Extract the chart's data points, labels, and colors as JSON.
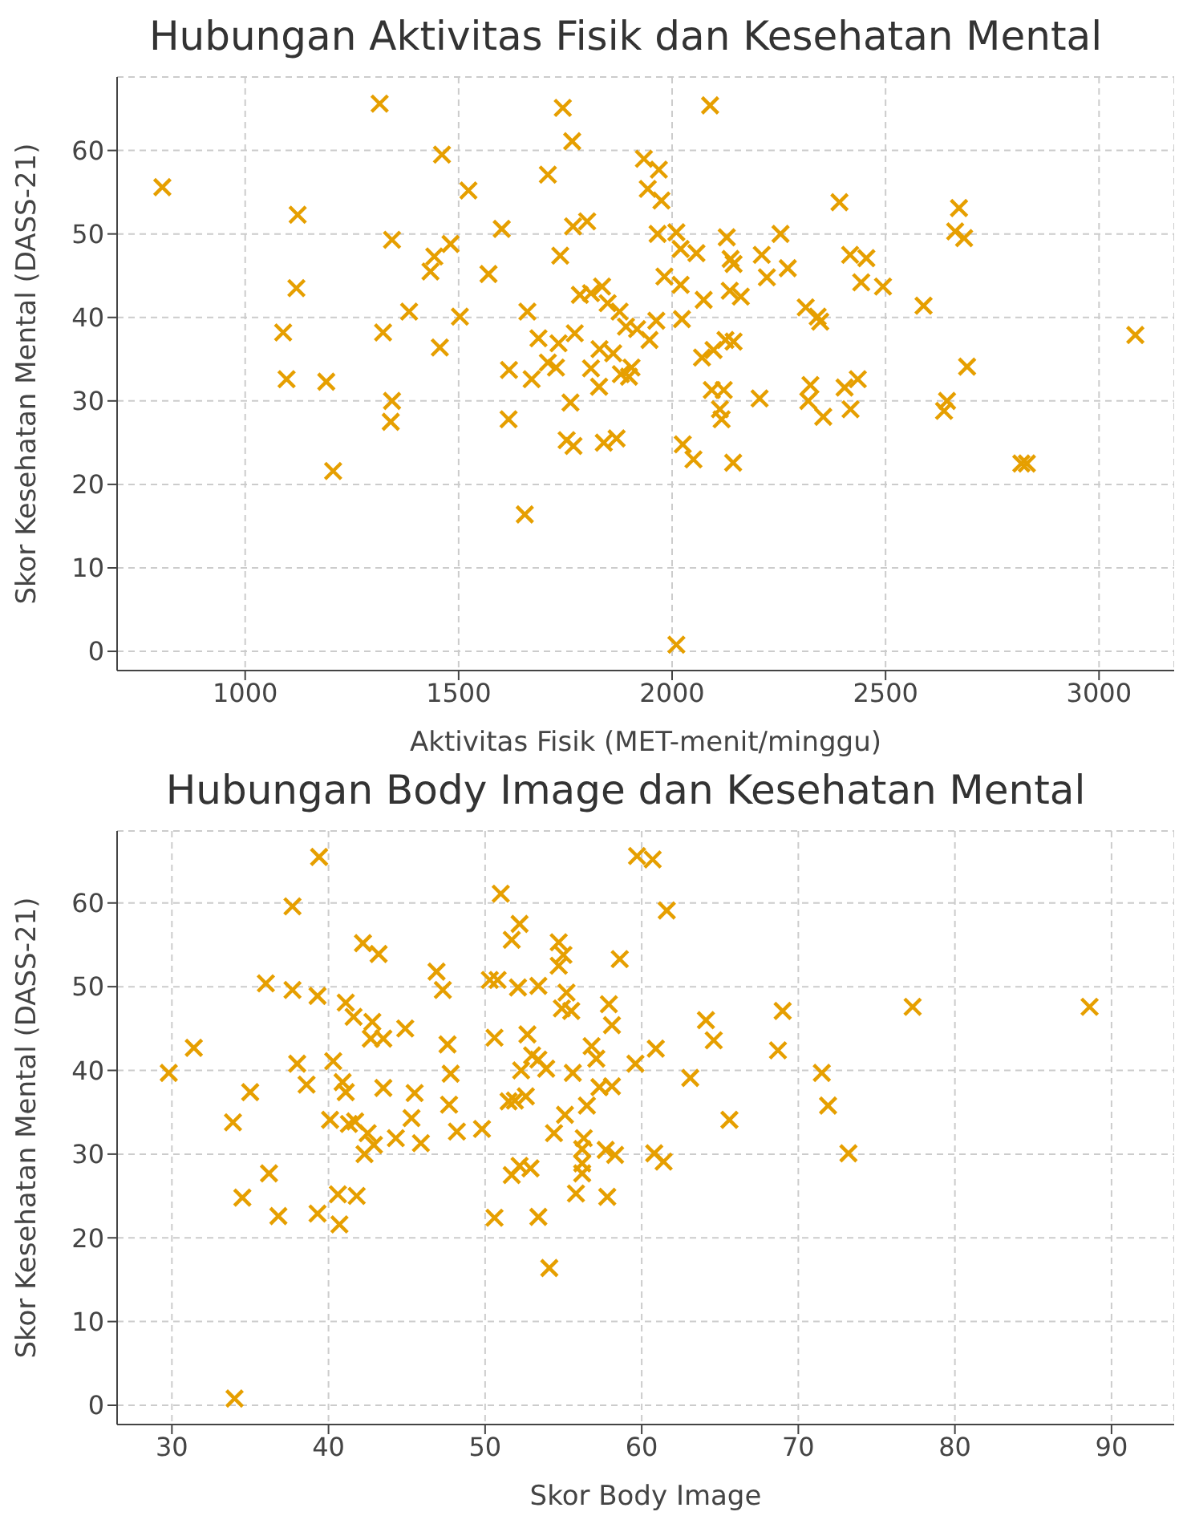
{
  "chart_data": [
    {
      "type": "scatter",
      "title": "Hubungan Aktivitas Fisik dan Kesehatan Mental",
      "xlabel": "Aktivitas Fisik (MET-menit/minggu)",
      "ylabel": "Skor Kesehatan Mental (DASS-21)",
      "color": "#e69f00",
      "marker": "cross",
      "grid": true,
      "x": [
        806,
        1315,
        1744,
        1766,
        1461,
        1709,
        1523,
        1123,
        1601,
        1768,
        1801,
        1344,
        1481,
        1443,
        1434,
        1738,
        1570,
        1120,
        1784,
        1810,
        1836,
        1849,
        1877,
        1892,
        1918,
        1384,
        1503,
        1661,
        1089,
        1323,
        1456,
        1687,
        1734,
        1772,
        1830,
        1862,
        1810,
        1709,
        1728,
        1618,
        1671,
        1829,
        1880,
        1905,
        1899,
        1097,
        1190,
        1344,
        1341,
        1617,
        1762,
        1753,
        1769,
        1840,
        1870,
        1206,
        1655,
        2089,
        1934,
        1969,
        1943,
        1975,
        1966,
        2010,
        2020,
        2057,
        2128,
        2137,
        2144,
        2135,
        2161,
        2074,
        2020,
        1982,
        2210,
        2254,
        2222,
        2271,
        2392,
        2417,
        2455,
        2443,
        2494,
        2589,
        2672,
        2663,
        2684,
        2691,
        2644,
        2637,
        2818,
        2831,
        3085,
        2313,
        2341,
        2347,
        1963,
        2023,
        1947,
        2070,
        2097,
        2125,
        2144,
        2093,
        2121,
        2112,
        2116,
        2205,
        2324,
        2319,
        2354,
        2404,
        2435,
        2418,
        2025,
        2050,
        2143,
        2010
      ],
      "values": [
        55.6,
        65.6,
        65.1,
        61.1,
        59.5,
        57.1,
        55.2,
        52.3,
        50.6,
        50.9,
        51.5,
        49.3,
        48.8,
        47.3,
        45.5,
        47.4,
        45.2,
        43.5,
        42.7,
        42.9,
        43.7,
        41.7,
        40.7,
        38.9,
        38.6,
        40.7,
        40.1,
        40.7,
        38.2,
        38.2,
        36.4,
        37.5,
        36.9,
        38.1,
        36.2,
        35.7,
        33.9,
        34.6,
        34.0,
        33.7,
        32.6,
        31.7,
        33.2,
        34.0,
        32.9,
        32.6,
        32.3,
        30.0,
        27.5,
        27.8,
        29.8,
        25.3,
        24.6,
        25.0,
        25.5,
        21.6,
        16.4,
        65.4,
        59.0,
        57.7,
        55.4,
        54.0,
        50.0,
        50.2,
        48.2,
        47.7,
        49.6,
        47.0,
        46.4,
        43.2,
        42.5,
        42.1,
        43.9,
        44.9,
        47.5,
        50.0,
        44.8,
        45.9,
        53.8,
        47.5,
        47.1,
        44.2,
        43.7,
        41.4,
        53.1,
        50.3,
        49.5,
        34.1,
        30.0,
        28.8,
        22.5,
        22.5,
        37.9,
        41.2,
        40.1,
        39.5,
        39.6,
        39.8,
        37.3,
        35.2,
        36.1,
        37.3,
        37.1,
        31.3,
        31.3,
        29.0,
        27.8,
        30.3,
        31.9,
        30.0,
        28.1,
        31.6,
        32.6,
        29.0,
        24.8,
        23.0,
        22.6,
        0.8
      ],
      "xlim": [
        700,
        3176
      ],
      "ylim": [
        -2.3,
        68.8
      ],
      "xticks": [
        1000,
        1500,
        2000,
        2500,
        3000
      ],
      "yticks": [
        0,
        10,
        20,
        30,
        40,
        50,
        60
      ]
    },
    {
      "type": "scatter",
      "title": "Hubungan Body Image dan Kesehatan Mental",
      "xlabel": "Skor Body Image",
      "ylabel": "Skor Kesehatan Mental (DASS-21)",
      "color": "#e69f00",
      "marker": "cross",
      "grid": true,
      "x": [
        39.4,
        37.7,
        51.0,
        52.2,
        51.7,
        54.7,
        55.0,
        43.2,
        42.2,
        36.0,
        37.7,
        39.3,
        46.9,
        47.3,
        50.3,
        50.8,
        52.1,
        53.4,
        54.7,
        55.2,
        54.9,
        55.5,
        57.9,
        58.1,
        41.1,
        41.6,
        42.8,
        42.7,
        43.5,
        44.9,
        47.6,
        50.6,
        52.7,
        53.0,
        53.4,
        53.9,
        52.3,
        55.6,
        56.8,
        57.1,
        31.4,
        29.8,
        35.0,
        38.0,
        38.6,
        40.3,
        40.9,
        41.1,
        43.5,
        45.5,
        47.8,
        47.7,
        51.5,
        51.9,
        52.6,
        55.1,
        56.5,
        57.3,
        58.1,
        33.9,
        40.1,
        41.3,
        41.7,
        42.5,
        42.9,
        42.3,
        45.3,
        44.3,
        45.9,
        48.2,
        49.8,
        54.4,
        56.3,
        56.2,
        56.2,
        56.2,
        57.7,
        58.3,
        36.2,
        34.5,
        36.8,
        39.3,
        40.6,
        41.8,
        40.7,
        51.7,
        52.2,
        52.9,
        55.8,
        57.8,
        50.6,
        53.4,
        54.1,
        34.0,
        59.7,
        60.7,
        61.6,
        58.6,
        69.0,
        77.3,
        88.6,
        64.1,
        64.6,
        60.9,
        68.7,
        59.6,
        71.5,
        71.9,
        63.1,
        65.6,
        73.2,
        60.8,
        61.4
      ],
      "values": [
        65.5,
        59.6,
        61.1,
        57.5,
        55.6,
        55.3,
        53.8,
        53.9,
        55.2,
        50.4,
        49.6,
        48.9,
        51.8,
        49.6,
        50.8,
        50.8,
        49.9,
        50.1,
        52.5,
        49.3,
        47.4,
        47.1,
        47.9,
        45.4,
        48.1,
        46.4,
        45.8,
        43.8,
        43.8,
        45.0,
        43.1,
        43.9,
        44.3,
        41.8,
        41.3,
        40.2,
        40.0,
        39.7,
        42.9,
        41.4,
        42.7,
        39.7,
        37.4,
        40.8,
        38.3,
        41.1,
        38.6,
        37.4,
        37.9,
        37.3,
        39.6,
        35.9,
        36.3,
        36.4,
        36.9,
        34.7,
        35.8,
        38.0,
        38.1,
        33.8,
        34.1,
        33.6,
        33.9,
        32.5,
        31.1,
        30.0,
        34.3,
        31.9,
        31.3,
        32.7,
        33.0,
        32.5,
        31.9,
        30.6,
        28.9,
        27.7,
        30.5,
        29.9,
        27.7,
        24.8,
        22.6,
        22.9,
        25.2,
        25.0,
        21.6,
        27.5,
        28.6,
        28.3,
        25.3,
        24.9,
        22.4,
        22.5,
        16.4,
        0.8,
        65.6,
        65.2,
        59.1,
        53.3,
        47.1,
        47.6,
        47.6,
        46.0,
        43.6,
        42.6,
        42.4,
        40.8,
        39.7,
        35.8,
        39.1,
        34.1,
        30.1,
        30.1,
        29.1
      ],
      "xlim": [
        26.5,
        94
      ],
      "ylim": [
        -2.3,
        68.6
      ],
      "xticks": [
        30,
        40,
        50,
        60,
        70,
        80,
        90
      ],
      "yticks": [
        0,
        10,
        20,
        30,
        40,
        50,
        60
      ]
    }
  ]
}
